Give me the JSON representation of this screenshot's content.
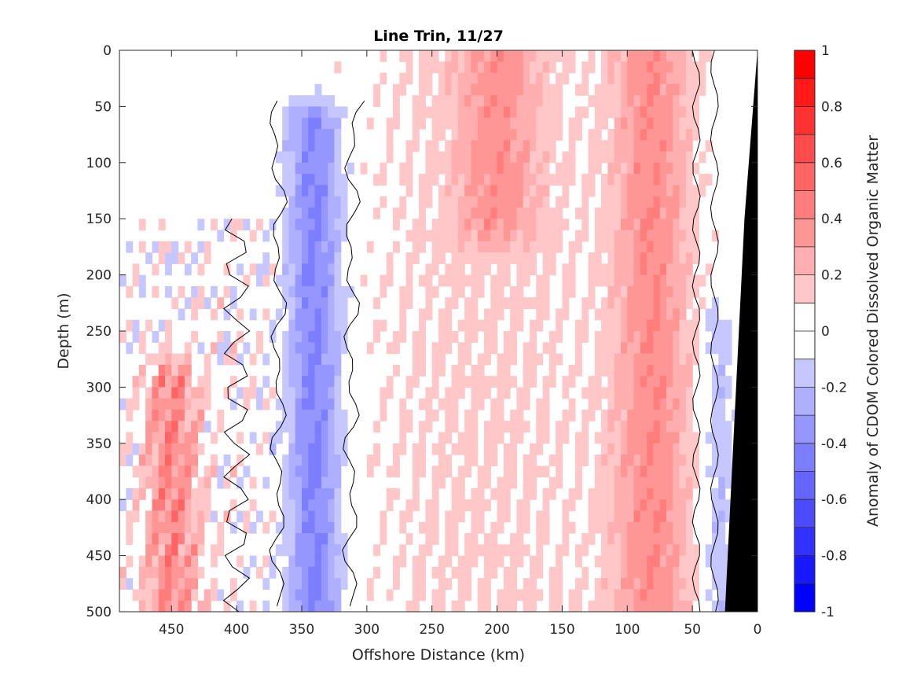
{
  "chart_data": {
    "type": "heatmap",
    "title": "Line Trin, 11/27",
    "xlabel": "Offshore Distance (km)",
    "ylabel": "Depth (m)",
    "xlim": [
      490,
      0
    ],
    "ylim": [
      0,
      500
    ],
    "x_reversed": true,
    "y_reversed": true,
    "x_ticks": [
      450,
      400,
      350,
      300,
      250,
      200,
      150,
      100,
      50,
      0
    ],
    "y_ticks": [
      0,
      50,
      100,
      150,
      200,
      250,
      300,
      350,
      400,
      450,
      500
    ],
    "colorbar": {
      "label": "Anomaly of CDOM Colored Dissolved Organic Matter",
      "range": [
        -1,
        1
      ],
      "levels": 20,
      "ticks": [
        1,
        0.8,
        0.6,
        0.4,
        0.2,
        0,
        -0.2,
        -0.4,
        -0.6,
        -0.8,
        -1
      ],
      "tick_labels": [
        "1",
        "0.8",
        "0.6",
        "0.4",
        "0.2",
        "0",
        "-0.2",
        "-0.4",
        "-0.6",
        "-0.8",
        "-1"
      ],
      "colormap": "blue-white-red",
      "low_color": "#0000ff",
      "high_color": "#ff0000",
      "mid_color": "#ffffff"
    },
    "contour_level": 0,
    "contour_color": "#000000",
    "bathymetry_color": "#000000",
    "bathymetry": [
      [
        0,
        0
      ],
      [
        10,
        150
      ],
      [
        25,
        500
      ]
    ],
    "features": [
      {
        "x": 340,
        "depth_range": [
          70,
          500
        ],
        "anomaly": -0.45
      },
      {
        "x": 80,
        "depth_range": [
          0,
          500
        ],
        "anomaly": 0.35
      },
      {
        "x": 200,
        "depth_range": [
          0,
          150
        ],
        "anomaly": 0.25
      },
      {
        "x": 450,
        "depth_range": [
          300,
          500
        ],
        "anomaly": 0.4
      },
      {
        "x": 30,
        "depth_range": [
          250,
          500
        ],
        "anomaly": -0.2
      }
    ]
  }
}
